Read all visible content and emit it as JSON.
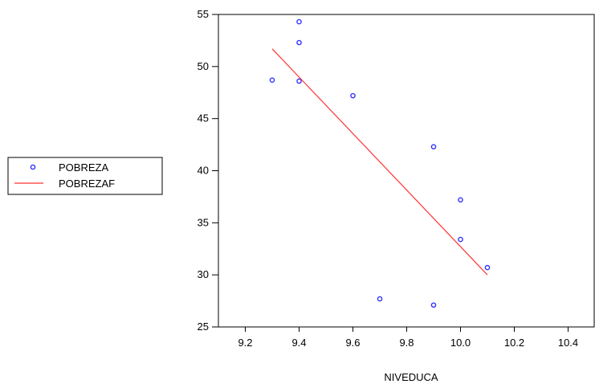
{
  "chart_data": {
    "type": "scatter",
    "xlabel": "NIVEDUCA",
    "ylabel": "",
    "xlim": [
      9.1,
      10.5
    ],
    "ylim": [
      25,
      55
    ],
    "x_ticks": [
      {
        "value": 9.2,
        "label": "9.2"
      },
      {
        "value": 9.4,
        "label": "9.4"
      },
      {
        "value": 9.6,
        "label": "9.6"
      },
      {
        "value": 9.8,
        "label": "9.8"
      },
      {
        "value": 10.0,
        "label": "10.0"
      },
      {
        "value": 10.2,
        "label": "10.2"
      },
      {
        "value": 10.4,
        "label": "10.4"
      }
    ],
    "y_ticks": [
      {
        "value": 25,
        "label": "25"
      },
      {
        "value": 30,
        "label": "30"
      },
      {
        "value": 35,
        "label": "35"
      },
      {
        "value": 40,
        "label": "40"
      },
      {
        "value": 45,
        "label": "45"
      },
      {
        "value": 50,
        "label": "50"
      },
      {
        "value": 55,
        "label": "55"
      }
    ],
    "grid": false,
    "legend_position": "left",
    "series": [
      {
        "name": "POBREZA",
        "kind": "scatter",
        "color": "#3333ff",
        "x": [
          9.3,
          9.4,
          9.4,
          9.4,
          9.6,
          9.7,
          9.9,
          9.9,
          10.0,
          10.0,
          10.1
        ],
        "y": [
          48.7,
          54.3,
          52.3,
          48.6,
          47.2,
          27.7,
          42.3,
          27.1,
          37.2,
          33.4,
          30.7
        ]
      },
      {
        "name": "POBREZAF",
        "kind": "line",
        "color": "#ff3333",
        "x": [
          9.3,
          10.1
        ],
        "y": [
          51.7,
          30.0
        ]
      }
    ]
  }
}
